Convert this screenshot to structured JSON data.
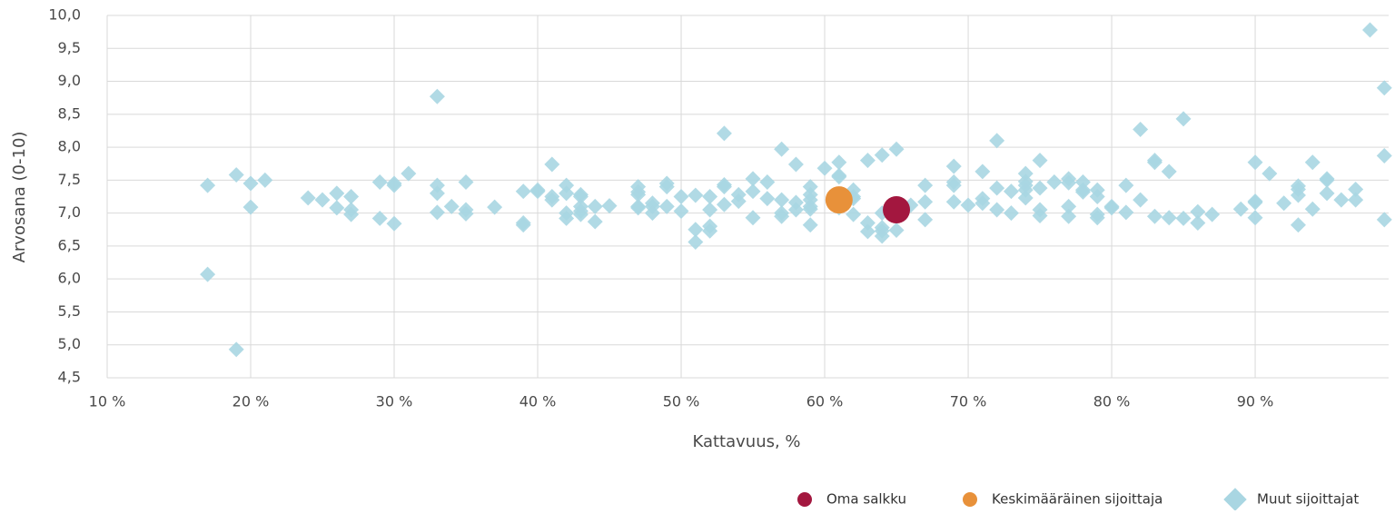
{
  "chart_data": {
    "type": "scatter",
    "xlabel": "Kattavuus, %",
    "ylabel": "Arvosana (0-10)",
    "xlim": [
      10,
      99.3
    ],
    "ylim": [
      4.5,
      10
    ],
    "xticks": [
      {
        "value": 10,
        "label": "10 %"
      },
      {
        "value": 20,
        "label": "20 %"
      },
      {
        "value": 30,
        "label": "30 %"
      },
      {
        "value": 40,
        "label": "40 %"
      },
      {
        "value": 50,
        "label": "50 %"
      },
      {
        "value": 60,
        "label": "60 %"
      },
      {
        "value": 70,
        "label": "70 %"
      },
      {
        "value": 80,
        "label": "80 %"
      },
      {
        "value": 90,
        "label": "90 %"
      }
    ],
    "yticks": [
      {
        "value": 4.5,
        "label": "4,5"
      },
      {
        "value": 5,
        "label": "5,0"
      },
      {
        "value": 5.5,
        "label": "5,5"
      },
      {
        "value": 6,
        "label": "6,0"
      },
      {
        "value": 6.5,
        "label": "6,5"
      },
      {
        "value": 7,
        "label": "7,0"
      },
      {
        "value": 7.5,
        "label": "7,5"
      },
      {
        "value": 8,
        "label": "8,0"
      },
      {
        "value": 8.5,
        "label": "8,5"
      },
      {
        "value": 9,
        "label": "9,0"
      },
      {
        "value": 9.5,
        "label": "9,5"
      },
      {
        "value": 10,
        "label": "10,0"
      }
    ],
    "grid": true,
    "legend": "bottom-right",
    "series": [
      {
        "name": "Muut sijoittajat",
        "color": "#a9d6e2",
        "marker": "diamond",
        "x": [
          17,
          17,
          19,
          19,
          20,
          20,
          21,
          24,
          25,
          26,
          26,
          27,
          27,
          27,
          29,
          29,
          30,
          30,
          30,
          31,
          33,
          33,
          33,
          33,
          34,
          35,
          35,
          35,
          37,
          39,
          39,
          39,
          40,
          40,
          41,
          41,
          41,
          42,
          42,
          42,
          42,
          43,
          43,
          43,
          43,
          43,
          44,
          44,
          45,
          47,
          47,
          47,
          47,
          47,
          48,
          48,
          48,
          49,
          49,
          49,
          50,
          50,
          51,
          51,
          51,
          52,
          52,
          52,
          52,
          53,
          53,
          53,
          53,
          54,
          54,
          55,
          55,
          55,
          56,
          56,
          57,
          57,
          57,
          57,
          58,
          58,
          58,
          59,
          59,
          59,
          59,
          59,
          59,
          60,
          61,
          61,
          61,
          61,
          62,
          62,
          62,
          62,
          63,
          63,
          63,
          64,
          64,
          64,
          64,
          64,
          65,
          65,
          66,
          67,
          67,
          67,
          69,
          69,
          69,
          69,
          70,
          71,
          71,
          71,
          72,
          72,
          72,
          73,
          73,
          74,
          74,
          74,
          74,
          74,
          75,
          75,
          75,
          75,
          76,
          77,
          77,
          77,
          77,
          78,
          78,
          78,
          79,
          79,
          79,
          79,
          80,
          80,
          81,
          81,
          82,
          82,
          83,
          83,
          83,
          84,
          84,
          85,
          85,
          86,
          86,
          87,
          89,
          90,
          90,
          90,
          90,
          91,
          92,
          93,
          93,
          93,
          93,
          94,
          94,
          95,
          95,
          95,
          96,
          97,
          97,
          98,
          99,
          99,
          99
        ],
        "values": [
          7.42,
          6.07,
          7.58,
          4.93,
          7.45,
          7.09,
          7.5,
          7.23,
          7.2,
          7.3,
          7.08,
          7.25,
          7.05,
          6.98,
          7.47,
          6.92,
          7.45,
          7.42,
          6.84,
          7.6,
          8.77,
          7.42,
          7.3,
          7.01,
          7.1,
          7.47,
          7.05,
          6.99,
          7.09,
          7.33,
          6.85,
          6.82,
          7.35,
          7.33,
          7.74,
          7.25,
          7.2,
          7.42,
          7.3,
          7.0,
          6.92,
          7.28,
          7.25,
          7.1,
          7.03,
          6.98,
          7.1,
          6.87,
          7.11,
          7.4,
          7.32,
          7.28,
          7.1,
          7.08,
          7.15,
          7.1,
          7.0,
          7.45,
          7.4,
          7.1,
          7.25,
          7.03,
          7.27,
          6.75,
          6.56,
          7.25,
          7.05,
          6.8,
          6.73,
          8.21,
          7.43,
          7.4,
          7.13,
          7.28,
          7.18,
          7.52,
          7.33,
          6.93,
          7.47,
          7.22,
          7.97,
          7.2,
          7.0,
          6.95,
          7.74,
          7.16,
          7.05,
          7.4,
          7.28,
          7.2,
          7.1,
          7.06,
          6.82,
          7.68,
          7.77,
          7.57,
          7.55,
          7.08,
          7.35,
          7.25,
          7.22,
          6.98,
          7.8,
          6.85,
          6.72,
          7.88,
          7.0,
          6.78,
          6.73,
          6.65,
          7.97,
          6.74,
          7.12,
          7.42,
          7.17,
          6.9,
          7.71,
          7.47,
          7.42,
          7.17,
          7.12,
          7.63,
          7.22,
          7.15,
          8.1,
          7.38,
          7.05,
          7.33,
          7.0,
          7.6,
          7.48,
          7.42,
          7.35,
          7.23,
          7.8,
          7.38,
          7.05,
          6.96,
          7.47,
          7.52,
          7.46,
          7.1,
          6.95,
          7.47,
          7.35,
          7.32,
          7.35,
          7.25,
          6.98,
          6.93,
          7.1,
          7.08,
          7.42,
          7.01,
          8.27,
          7.2,
          7.8,
          7.77,
          6.95,
          7.63,
          6.93,
          8.43,
          6.92,
          7.02,
          6.85,
          6.98,
          7.06,
          7.77,
          7.18,
          7.16,
          6.93,
          7.6,
          7.15,
          7.41,
          7.36,
          7.27,
          6.82,
          7.77,
          7.06,
          7.52,
          7.5,
          7.3,
          7.2,
          7.36,
          7.2,
          9.78,
          8.9,
          7.87,
          6.9
        ]
      },
      {
        "name": "Keskimääräinen sijoittaja",
        "color": "#e8913a",
        "marker": "circle",
        "x": [
          61
        ],
        "values": [
          7.2
        ]
      },
      {
        "name": "Oma salkku",
        "color": "#a3173f",
        "marker": "circle",
        "x": [
          65
        ],
        "values": [
          7.05
        ]
      }
    ]
  }
}
